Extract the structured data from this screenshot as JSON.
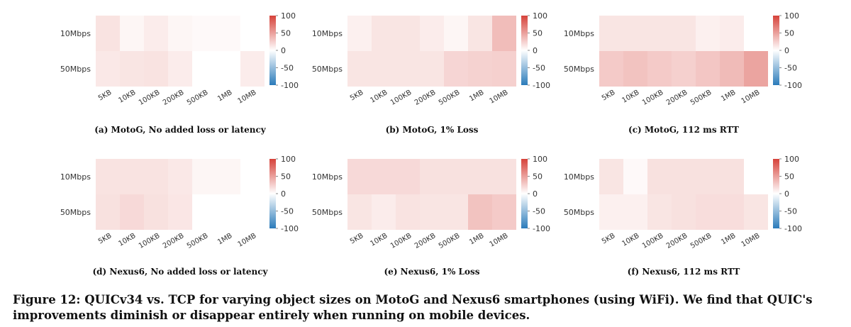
{
  "figure_caption": "Figure 12: QUICv34 vs. TCP for varying object sizes on MotoG and Nexus6 smartphones (using WiFi). We find that QUIC's improvements diminish or disappear entirely when running on mobile devices.",
  "colormap": {
    "negative": "#2b7bba",
    "zero": "#ffffff",
    "positive": "#d6423a"
  },
  "chart_data": [
    {
      "type": "heatmap",
      "caption": "(a) MotoG, No added loss or latency",
      "rows": [
        "10Mbps",
        "50Mbps"
      ],
      "columns": [
        "5KB",
        "10KB",
        "100KB",
        "200KB",
        "500KB",
        "1MB",
        "10MB"
      ],
      "values": [
        [
          15,
          5,
          10,
          5,
          3,
          3,
          0
        ],
        [
          12,
          14,
          15,
          10,
          0,
          0,
          10
        ]
      ],
      "colorbar": {
        "range": [
          -100,
          100
        ],
        "ticks": [
          "100",
          "50",
          "0",
          "-50",
          "-100"
        ]
      }
    },
    {
      "type": "heatmap",
      "caption": "(b) MotoG, 1% Loss",
      "rows": [
        "10Mbps",
        "50Mbps"
      ],
      "columns": [
        "5KB",
        "10KB",
        "100KB",
        "200KB",
        "500KB",
        "1MB",
        "10MB"
      ],
      "values": [
        [
          8,
          14,
          14,
          10,
          5,
          14,
          35
        ],
        [
          14,
          14,
          14,
          14,
          22,
          24,
          25
        ]
      ],
      "colorbar": {
        "range": [
          -100,
          100
        ],
        "ticks": [
          "100",
          "50",
          "0",
          "-50",
          "-100"
        ]
      }
    },
    {
      "type": "heatmap",
      "caption": "(c) MotoG, 112 ms RTT",
      "rows": [
        "10Mbps",
        "50Mbps"
      ],
      "columns": [
        "5KB",
        "10KB",
        "100KB",
        "200KB",
        "500KB",
        "1MB",
        "10MB"
      ],
      "values": [
        [
          14,
          14,
          14,
          14,
          8,
          10,
          0
        ],
        [
          28,
          32,
          28,
          25,
          30,
          36,
          48
        ]
      ],
      "colorbar": {
        "range": [
          -100,
          100
        ],
        "ticks": [
          "100",
          "50",
          "0",
          "-50",
          "-100"
        ]
      }
    },
    {
      "type": "heatmap",
      "caption": "(d) Nexus6, No added loss or latency",
      "rows": [
        "10Mbps",
        "50Mbps"
      ],
      "columns": [
        "5KB",
        "10KB",
        "100KB",
        "200KB",
        "500KB",
        "1MB",
        "10MB"
      ],
      "values": [
        [
          15,
          15,
          15,
          12,
          5,
          5,
          0
        ],
        [
          16,
          20,
          16,
          13,
          0,
          0,
          0
        ]
      ],
      "colorbar": {
        "range": [
          -100,
          100
        ],
        "ticks": [
          "100",
          "50",
          "0",
          "-50",
          "-100"
        ]
      }
    },
    {
      "type": "heatmap",
      "caption": "(e) Nexus6, 1% Loss",
      "rows": [
        "10Mbps",
        "50Mbps"
      ],
      "columns": [
        "5KB",
        "10KB",
        "100KB",
        "200KB",
        "500KB",
        "1MB",
        "10MB"
      ],
      "values": [
        [
          20,
          20,
          20,
          16,
          16,
          16,
          16
        ],
        [
          14,
          10,
          15,
          14,
          14,
          32,
          28
        ]
      ],
      "colorbar": {
        "range": [
          -100,
          100
        ],
        "ticks": [
          "100",
          "50",
          "0",
          "-50",
          "-100"
        ]
      }
    },
    {
      "type": "heatmap",
      "caption": "(f) Nexus6, 112 ms RTT",
      "rows": [
        "10Mbps",
        "50Mbps"
      ],
      "columns": [
        "5KB",
        "10KB",
        "100KB",
        "200KB",
        "500KB",
        "1MB",
        "10MB"
      ],
      "values": [
        [
          14,
          3,
          16,
          16,
          16,
          16,
          0
        ],
        [
          8,
          8,
          14,
          16,
          18,
          18,
          14
        ]
      ],
      "colorbar": {
        "range": [
          -100,
          100
        ],
        "ticks": [
          "100",
          "50",
          "0",
          "-50",
          "-100"
        ]
      }
    }
  ]
}
